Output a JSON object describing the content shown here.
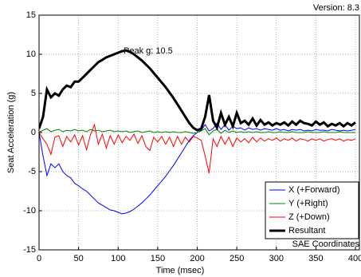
{
  "chart_data": {
    "type": "line",
    "title": "Version: 8.3",
    "x_label": "Time (msec)",
    "y_label": "Seat Acceleration (g)",
    "annotations": [
      "Peak g: 10.5",
      "SAE Coordinates"
    ],
    "x": [
      0,
      5,
      10,
      15,
      20,
      25,
      30,
      35,
      40,
      45,
      50,
      55,
      60,
      65,
      70,
      75,
      80,
      85,
      90,
      95,
      100,
      105,
      110,
      115,
      120,
      125,
      130,
      135,
      140,
      145,
      150,
      155,
      160,
      165,
      170,
      175,
      180,
      185,
      190,
      195,
      200,
      205,
      210,
      215,
      220,
      225,
      230,
      235,
      240,
      245,
      250,
      255,
      260,
      265,
      270,
      275,
      280,
      285,
      290,
      295,
      300,
      305,
      310,
      315,
      320,
      325,
      330,
      335,
      340,
      345,
      350,
      355,
      360,
      365,
      370,
      375,
      380,
      385,
      390,
      395,
      400
    ],
    "series": [
      {
        "name": "X (+Forward)",
        "color": "#0000ff",
        "values": [
          0,
          -3,
          -5.5,
          -4,
          -4.5,
          -4,
          -5,
          -5.5,
          -5.8,
          -6.5,
          -6.8,
          -7.2,
          -7.5,
          -8,
          -8.5,
          -9,
          -9.3,
          -9.6,
          -9.9,
          -10,
          -10.2,
          -10.4,
          -10.3,
          -10.1,
          -9.8,
          -9.4,
          -9,
          -8.5,
          -8,
          -7.4,
          -6.8,
          -6.2,
          -5.6,
          -4.9,
          -4.2,
          -3.4,
          -2.6,
          -1.8,
          -1,
          -0.4,
          0,
          0.3,
          1,
          0.2,
          0.5,
          1.2,
          0.4,
          1,
          0.3,
          0.8,
          0.5,
          0.6,
          0.3,
          0.6,
          0.4,
          0.5,
          0.3,
          0.5,
          0.4,
          0.3,
          0.5,
          0.3,
          0.4,
          0.2,
          0.4,
          0.3,
          0.4,
          0.2,
          0.3,
          0.2,
          0.4,
          0.3,
          0.3,
          0.2,
          0.4,
          0.3,
          0.2,
          0.3,
          0.2,
          0.3,
          0.4
        ]
      },
      {
        "name": "Y (+Right)",
        "color": "#008000",
        "values": [
          0,
          0.3,
          0.5,
          0.1,
          0.3,
          0.4,
          0.1,
          0.3,
          0.2,
          0.4,
          0.2,
          0.3,
          0.1,
          0.4,
          0.2,
          0.3,
          0.1,
          0.2,
          0.3,
          0.1,
          0.2,
          0.1,
          0.2,
          0,
          0.1,
          0.2,
          0,
          0.1,
          0.2,
          0,
          0.1,
          0,
          0.1,
          0,
          0.1,
          0,
          0,
          0.1,
          0,
          -0.1,
          0,
          0.2,
          0.5,
          -0.3,
          0.2,
          0.4,
          -0.1,
          0.3,
          0,
          0.2,
          0,
          0.1,
          0,
          0.1,
          0,
          0.1,
          0,
          0,
          0.1,
          0,
          0,
          0.1,
          0,
          0,
          0.1,
          0,
          0,
          0,
          0.1,
          0,
          0,
          0,
          0.1,
          0,
          0,
          0,
          0.1,
          0,
          0,
          0,
          0
        ]
      },
      {
        "name": "Z (+Down)",
        "color": "#ff0000",
        "values": [
          0,
          -0.8,
          -1.5,
          -2.8,
          -0.6,
          -0.4,
          -1.8,
          -0.5,
          -1.2,
          -0.3,
          -1.6,
          -0.4,
          -2.2,
          -0.3,
          1,
          -1.5,
          -0.2,
          -2,
          -0.4,
          -1.5,
          -0.3,
          -1.3,
          -0.5,
          -1,
          -0.2,
          -1.4,
          -0.4,
          -1.8,
          -2.3,
          -0.6,
          -1.2,
          -0.5,
          -1.5,
          -0.6,
          -1.8,
          -0.5,
          -1.5,
          -0.6,
          -1.2,
          -0.5,
          -0.7,
          -1,
          -3,
          -5.2,
          -0.8,
          -1.8,
          -0.5,
          -1.5,
          -0.6,
          -1.8,
          -0.7,
          -1.2,
          -0.8,
          -1.3,
          -0.6,
          -1.2,
          -0.7,
          -1.1,
          -0.8,
          -1,
          -0.7,
          -1.1,
          -0.8,
          -1,
          -0.7,
          -1.1,
          -0.8,
          -0.9,
          -1.1,
          -0.8,
          -1,
          -0.8,
          -1.1,
          -0.9,
          -0.8,
          -1,
          -0.8,
          -1.1,
          -0.9,
          -1,
          -0.8
        ]
      },
      {
        "name": "Resultant",
        "color": "#000000",
        "values": [
          0.5,
          2,
          5.5,
          4.5,
          5,
          4.7,
          5.5,
          6,
          5.8,
          6.5,
          6.5,
          7,
          7.5,
          8,
          8.5,
          9,
          9.3,
          9.6,
          9.8,
          10,
          10.2,
          10.4,
          10.5,
          10.3,
          10,
          9.6,
          9.2,
          8.7,
          8.2,
          7.6,
          7,
          6.4,
          5.8,
          5.1,
          4.4,
          3.6,
          2.8,
          2,
          1.2,
          0.6,
          0.3,
          0.5,
          2,
          4.8,
          1.5,
          0.6,
          2.5,
          1,
          2,
          0.8,
          2.5,
          1.2,
          1.5,
          1,
          1.8,
          0.9,
          1.6,
          1,
          1.3,
          0.9,
          1.2,
          1,
          1.3,
          0.9,
          1.4,
          1,
          1.5,
          1.2,
          1.1,
          0.9,
          1.4,
          1,
          1.3,
          0.8,
          1.1,
          0.9,
          1.2,
          0.8,
          1.2,
          0.9,
          1.3
        ]
      }
    ],
    "xlim": [
      0,
      405
    ],
    "xticks": [
      0,
      50,
      100,
      150,
      200,
      250,
      300,
      350,
      400
    ],
    "ylim": [
      -15,
      15
    ],
    "yticks": [
      -15,
      -10,
      -5,
      0,
      5,
      10,
      15
    ],
    "grid": true,
    "legend": "south east"
  }
}
